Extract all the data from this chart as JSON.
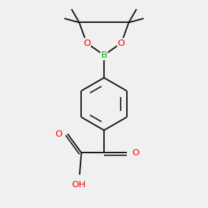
{
  "background_color": "#f0f0f0",
  "bond_color": "#1a1a1a",
  "O_color": "#ff0000",
  "B_color": "#00bb00",
  "figsize": [
    3.0,
    3.0
  ],
  "dpi": 100,
  "xlim": [
    -1.5,
    1.5
  ],
  "ylim": [
    -2.8,
    2.8
  ]
}
